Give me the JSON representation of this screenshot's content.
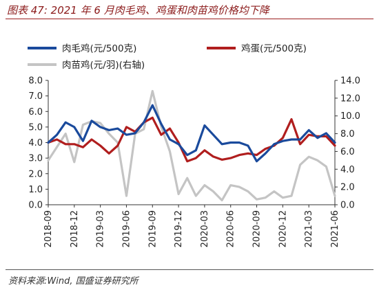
{
  "figure": {
    "title": "图表 47:  2021 年 6 月肉毛鸡、鸡蛋和肉苗鸡价格均下降",
    "source": "资料来源:Wind, 国盛证券研究所"
  },
  "chart_data": {
    "type": "line",
    "title": "",
    "x_tick_labels": [
      "2018-09",
      "2018-12",
      "2019-03",
      "2019-06",
      "2019-09",
      "2019-12",
      "2020-03",
      "2020-06",
      "2020-09",
      "2020-12",
      "2021-03",
      "2021-06"
    ],
    "xlim": [
      "2018-09",
      "2021-06"
    ],
    "left_axis": {
      "label": "",
      "ylim": [
        0,
        8
      ],
      "ticks": [
        "0.0",
        "1.0",
        "2.0",
        "3.0",
        "4.0",
        "5.0",
        "6.0",
        "7.0",
        "8.0"
      ]
    },
    "right_axis": {
      "label": "",
      "ylim": [
        0,
        14
      ],
      "ticks": [
        "0.0",
        "2.0",
        "4.0",
        "6.0",
        "8.0",
        "10.0",
        "12.0",
        "14.0"
      ]
    },
    "grid": false,
    "legend_position": "top",
    "series": [
      {
        "name": "肉毛鸡(元/500克)",
        "axis": "left",
        "color": "#1a4a9c",
        "x": [
          "2018-09",
          "2018-10",
          "2018-11",
          "2018-12",
          "2019-01",
          "2019-02",
          "2019-03",
          "2019-04",
          "2019-05",
          "2019-06",
          "2019-07",
          "2019-08",
          "2019-09",
          "2019-10",
          "2019-11",
          "2019-12",
          "2020-01",
          "2020-02",
          "2020-03",
          "2020-04",
          "2020-05",
          "2020-06",
          "2020-07",
          "2020-08",
          "2020-09",
          "2020-10",
          "2020-11",
          "2020-12",
          "2021-01",
          "2021-02",
          "2021-03",
          "2021-04",
          "2021-05",
          "2021-06"
        ],
        "values": [
          4.0,
          4.5,
          5.3,
          5.0,
          4.1,
          5.4,
          5.0,
          4.8,
          4.9,
          4.5,
          4.6,
          5.3,
          6.4,
          5.2,
          4.2,
          3.9,
          3.2,
          3.5,
          5.1,
          4.5,
          3.9,
          4.0,
          4.0,
          3.8,
          2.8,
          3.3,
          3.9,
          4.1,
          4.2,
          4.2,
          4.8,
          4.3,
          4.6,
          4.0
        ]
      },
      {
        "name": "鸡蛋(元/500克)",
        "axis": "left",
        "color": "#b01e1e",
        "x": [
          "2018-09",
          "2018-10",
          "2018-11",
          "2018-12",
          "2019-01",
          "2019-02",
          "2019-03",
          "2019-04",
          "2019-05",
          "2019-06",
          "2019-07",
          "2019-08",
          "2019-09",
          "2019-10",
          "2019-11",
          "2019-12",
          "2020-01",
          "2020-02",
          "2020-03",
          "2020-04",
          "2020-05",
          "2020-06",
          "2020-07",
          "2020-08",
          "2020-09",
          "2020-10",
          "2020-11",
          "2020-12",
          "2021-01",
          "2021-02",
          "2021-03",
          "2021-04",
          "2021-05",
          "2021-06"
        ],
        "values": [
          4.0,
          4.2,
          3.9,
          3.9,
          3.7,
          4.2,
          3.8,
          3.3,
          3.8,
          5.0,
          4.7,
          5.3,
          5.6,
          4.5,
          4.9,
          4.0,
          2.8,
          3.0,
          3.5,
          3.1,
          2.9,
          3.0,
          3.2,
          3.3,
          3.2,
          3.6,
          3.8,
          4.3,
          5.5,
          3.9,
          4.5,
          4.4,
          4.4,
          3.8
        ]
      },
      {
        "name": "肉苗鸡(元/羽)(右轴)",
        "axis": "right",
        "color": "#c4c4c4",
        "x": [
          "2018-09",
          "2018-10",
          "2018-11",
          "2018-12",
          "2019-01",
          "2019-02",
          "2019-03",
          "2019-04",
          "2019-05",
          "2019-06",
          "2019-07",
          "2019-08",
          "2019-09",
          "2019-10",
          "2019-11",
          "2019-12",
          "2020-01",
          "2020-02",
          "2020-03",
          "2020-04",
          "2020-05",
          "2020-06",
          "2020-07",
          "2020-08",
          "2020-09",
          "2020-10",
          "2020-11",
          "2020-12",
          "2021-01",
          "2021-02",
          "2021-03",
          "2021-04",
          "2021-05",
          "2021-06"
        ],
        "values": [
          5.0,
          6.5,
          8.0,
          4.8,
          9.0,
          9.4,
          9.2,
          8.0,
          7.0,
          1.0,
          8.0,
          8.5,
          12.8,
          8.8,
          6.0,
          1.2,
          3.0,
          1.0,
          2.2,
          1.5,
          0.5,
          2.2,
          2.0,
          1.5,
          0.6,
          0.8,
          1.5,
          0.8,
          1.0,
          4.5,
          5.4,
          5.0,
          4.3,
          1.0
        ]
      }
    ]
  }
}
